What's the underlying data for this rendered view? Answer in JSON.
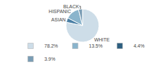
{
  "chart_data": {
    "type": "pie",
    "categories": [
      "WHITE",
      "ASIAN",
      "HISPANIC",
      "BLACK"
    ],
    "values": [
      78.2,
      4.4,
      13.5,
      3.9
    ],
    "colors": [
      "#cddde8",
      "#4a7fa5",
      "#8ab4cc",
      "#7a9db5"
    ],
    "legend": "bottom",
    "legend_items": [
      {
        "label": "78.2%",
        "color": "#cddde8"
      },
      {
        "label": "13.5%",
        "color": "#8ab4cc"
      },
      {
        "label": "4.4%",
        "color": "#2d5f80"
      },
      {
        "label": "3.9%",
        "color": "#7a9db5"
      }
    ]
  }
}
